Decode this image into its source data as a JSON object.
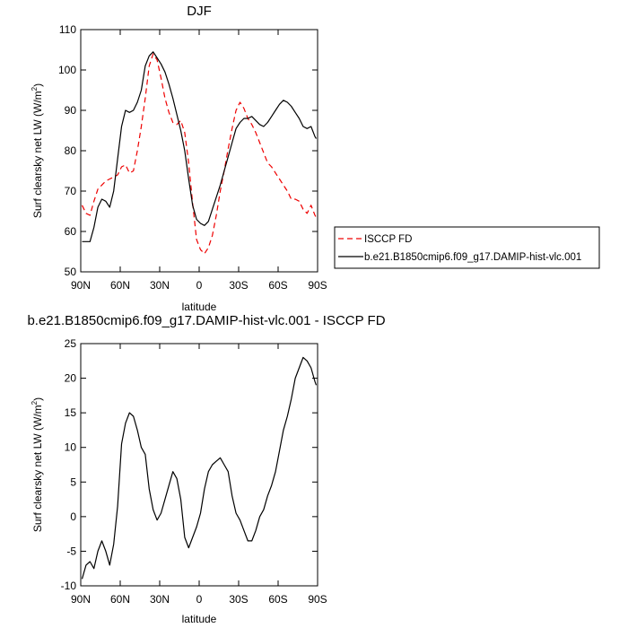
{
  "chart_data": [
    {
      "type": "line",
      "title": "DJF",
      "xlabel": "latitude",
      "ylabel": "Surf clearsky net LW (W/m",
      "ylabel_sup": "2",
      "ylabel_end": ")",
      "xlim": [
        90,
        -90
      ],
      "ylim": [
        50,
        110
      ],
      "xticks": [
        90,
        60,
        30,
        0,
        -30,
        -60,
        -90
      ],
      "xtick_labels": [
        "90N",
        "60N",
        "30N",
        "0",
        "30S",
        "60S",
        "90S"
      ],
      "yticks": [
        50,
        60,
        70,
        80,
        90,
        100,
        110
      ],
      "ytick_labels": [
        "50",
        "60",
        "70",
        "80",
        "90",
        "100",
        "110"
      ],
      "legend_position": "right",
      "grid": false,
      "series": [
        {
          "name": "ISCCP FD",
          "color": "#ee0000",
          "dash": "dashed",
          "x": [
            89,
            86,
            83,
            80,
            77,
            74,
            71,
            68,
            65,
            62,
            59,
            56,
            53,
            50,
            47,
            44,
            41,
            38,
            35,
            32,
            29,
            26,
            23,
            20,
            17,
            14,
            11,
            8,
            5,
            2,
            -1,
            -4,
            -7,
            -10,
            -13,
            -16,
            -19,
            -22,
            -25,
            -28,
            -31,
            -34,
            -37,
            -40,
            -43,
            -46,
            -49,
            -52,
            -55,
            -58,
            -61,
            -64,
            -67,
            -70,
            -73,
            -76,
            -79,
            -82,
            -85,
            -88,
            -89
          ],
          "y": [
            66.5,
            64.5,
            64,
            67.5,
            70.5,
            71.5,
            72.5,
            73,
            73.5,
            74,
            76,
            76.5,
            74.5,
            75,
            80,
            86,
            93,
            101,
            104,
            102.5,
            98,
            93,
            89.5,
            87,
            86.5,
            87.5,
            84.5,
            77,
            67,
            58,
            55.5,
            54.5,
            56,
            59,
            64,
            70,
            75,
            80.5,
            85.5,
            90,
            92,
            90.5,
            88,
            86.5,
            84.5,
            82,
            79.5,
            77,
            76,
            74.5,
            73,
            71.5,
            70,
            68,
            68,
            67.5,
            65.5,
            64.5,
            66.5,
            64,
            63.5
          ]
        },
        {
          "name": "b.e21.B1850cmip6.f09_g17.DAMIP-hist-vlc.001",
          "color": "#000000",
          "dash": "solid",
          "x": [
            89,
            86,
            83,
            80,
            77,
            74,
            71,
            68,
            65,
            62,
            59,
            56,
            53,
            50,
            47,
            44,
            41,
            38,
            35,
            32,
            29,
            26,
            23,
            20,
            17,
            14,
            11,
            8,
            5,
            2,
            -1,
            -4,
            -7,
            -10,
            -13,
            -16,
            -19,
            -22,
            -25,
            -28,
            -31,
            -34,
            -37,
            -40,
            -43,
            -46,
            -49,
            -52,
            -55,
            -58,
            -61,
            -64,
            -67,
            -70,
            -73,
            -76,
            -79,
            -82,
            -85,
            -88,
            -89
          ],
          "y": [
            57.5,
            57.5,
            57.5,
            61,
            66,
            68,
            67.5,
            66,
            70,
            78,
            86,
            90,
            89.5,
            90,
            92,
            95,
            101,
            103.5,
            104.5,
            103,
            101.5,
            99.5,
            96.5,
            93,
            89,
            85,
            80,
            73,
            66.5,
            63,
            62,
            61.5,
            62.5,
            65.5,
            68.5,
            71.5,
            75,
            78.5,
            82,
            85.5,
            87,
            88,
            88,
            88.5,
            87.5,
            86.5,
            86,
            87,
            88.5,
            90,
            91.5,
            92.5,
            92,
            91,
            89.5,
            88,
            86,
            85.5,
            86,
            83.5,
            83
          ]
        }
      ]
    },
    {
      "type": "line",
      "title": "b.e21.B1850cmip6.f09_g17.DAMIP-hist-vlc.001 - ISCCP FD",
      "xlabel": "latitude",
      "ylabel": "Surf clearsky net LW (W/m",
      "ylabel_sup": "2",
      "ylabel_end": ")",
      "xlim": [
        90,
        -90
      ],
      "ylim": [
        -10,
        25
      ],
      "xticks": [
        90,
        60,
        30,
        0,
        -30,
        -60,
        -90
      ],
      "xtick_labels": [
        "90N",
        "60N",
        "30N",
        "0",
        "30S",
        "60S",
        "90S"
      ],
      "yticks": [
        -10,
        -5,
        0,
        5,
        10,
        15,
        20,
        25
      ],
      "ytick_labels": [
        "-10",
        "-5",
        "0",
        "5",
        "10",
        "15",
        "20",
        "25"
      ],
      "grid": false,
      "series": [
        {
          "color": "#000000",
          "dash": "solid",
          "x": [
            89,
            86,
            83,
            80,
            77,
            74,
            71,
            68,
            65,
            62,
            59,
            56,
            53,
            50,
            47,
            44,
            41,
            38,
            35,
            32,
            29,
            26,
            23,
            20,
            17,
            14,
            11,
            8,
            5,
            2,
            -1,
            -4,
            -7,
            -10,
            -13,
            -16,
            -19,
            -22,
            -25,
            -28,
            -31,
            -34,
            -37,
            -40,
            -43,
            -46,
            -49,
            -52,
            -55,
            -58,
            -61,
            -64,
            -67,
            -70,
            -73,
            -76,
            -79,
            -82,
            -85,
            -88,
            -89
          ],
          "y": [
            -9,
            -7,
            -6.5,
            -7.5,
            -5,
            -3.5,
            -5,
            -7,
            -4,
            1.5,
            10.5,
            13.5,
            15,
            14.5,
            12.5,
            10,
            9,
            4,
            1,
            -0.5,
            0.5,
            2.5,
            4.5,
            6.5,
            5.5,
            2.5,
            -3,
            -4.5,
            -3,
            -1.5,
            0.5,
            4,
            6.5,
            7.5,
            8,
            8.5,
            7.5,
            6.5,
            3,
            0.5,
            -0.5,
            -2,
            -3.5,
            -3.5,
            -2,
            0,
            1,
            3,
            4.5,
            6.5,
            9.5,
            12.5,
            14.5,
            17,
            20,
            21.5,
            23,
            22.5,
            21.5,
            19.5,
            19
          ]
        }
      ]
    }
  ]
}
